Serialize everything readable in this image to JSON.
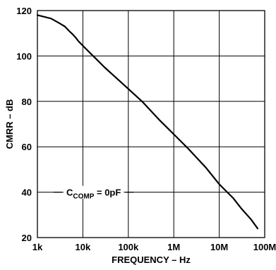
{
  "chart_data": {
    "type": "line",
    "title": "",
    "xlabel": "FREQUENCY – Hz",
    "ylabel": "CMRR – dB",
    "x_scale": "log",
    "xlim": [
      1000,
      100000000
    ],
    "ylim": [
      20,
      120
    ],
    "grid": true,
    "x_ticks": [
      {
        "value": 1000,
        "label": "1k"
      },
      {
        "value": 10000,
        "label": "10k"
      },
      {
        "value": 100000,
        "label": "100k"
      },
      {
        "value": 1000000,
        "label": "1M"
      },
      {
        "value": 10000000,
        "label": "10M"
      },
      {
        "value": 100000000,
        "label": "100M"
      }
    ],
    "y_ticks": [
      {
        "value": 20,
        "label": "20"
      },
      {
        "value": 40,
        "label": "40"
      },
      {
        "value": 60,
        "label": "60"
      },
      {
        "value": 80,
        "label": "80"
      },
      {
        "value": 100,
        "label": "100"
      },
      {
        "value": 120,
        "label": "120"
      }
    ],
    "annotation": {
      "base": "C",
      "sub": "COMP",
      "rest": " = 0pF"
    },
    "series": [
      {
        "color": "#000000",
        "x": [
          1000,
          2000,
          3000,
          4000,
          5000,
          6000,
          7000,
          8000,
          10000,
          15000,
          20000,
          30000,
          50000,
          100000,
          200000,
          500000,
          1000000,
          2000000,
          5000000,
          10000000,
          15000000,
          20000000,
          30000000,
          50000000,
          70000000
        ],
        "y": [
          118,
          116.5,
          114.5,
          113,
          111,
          109.5,
          108,
          106.5,
          104.5,
          101,
          98.5,
          95,
          91,
          85.5,
          80,
          71.5,
          65.5,
          59.5,
          51,
          43.5,
          40,
          37.5,
          33,
          28,
          24
        ]
      }
    ]
  }
}
